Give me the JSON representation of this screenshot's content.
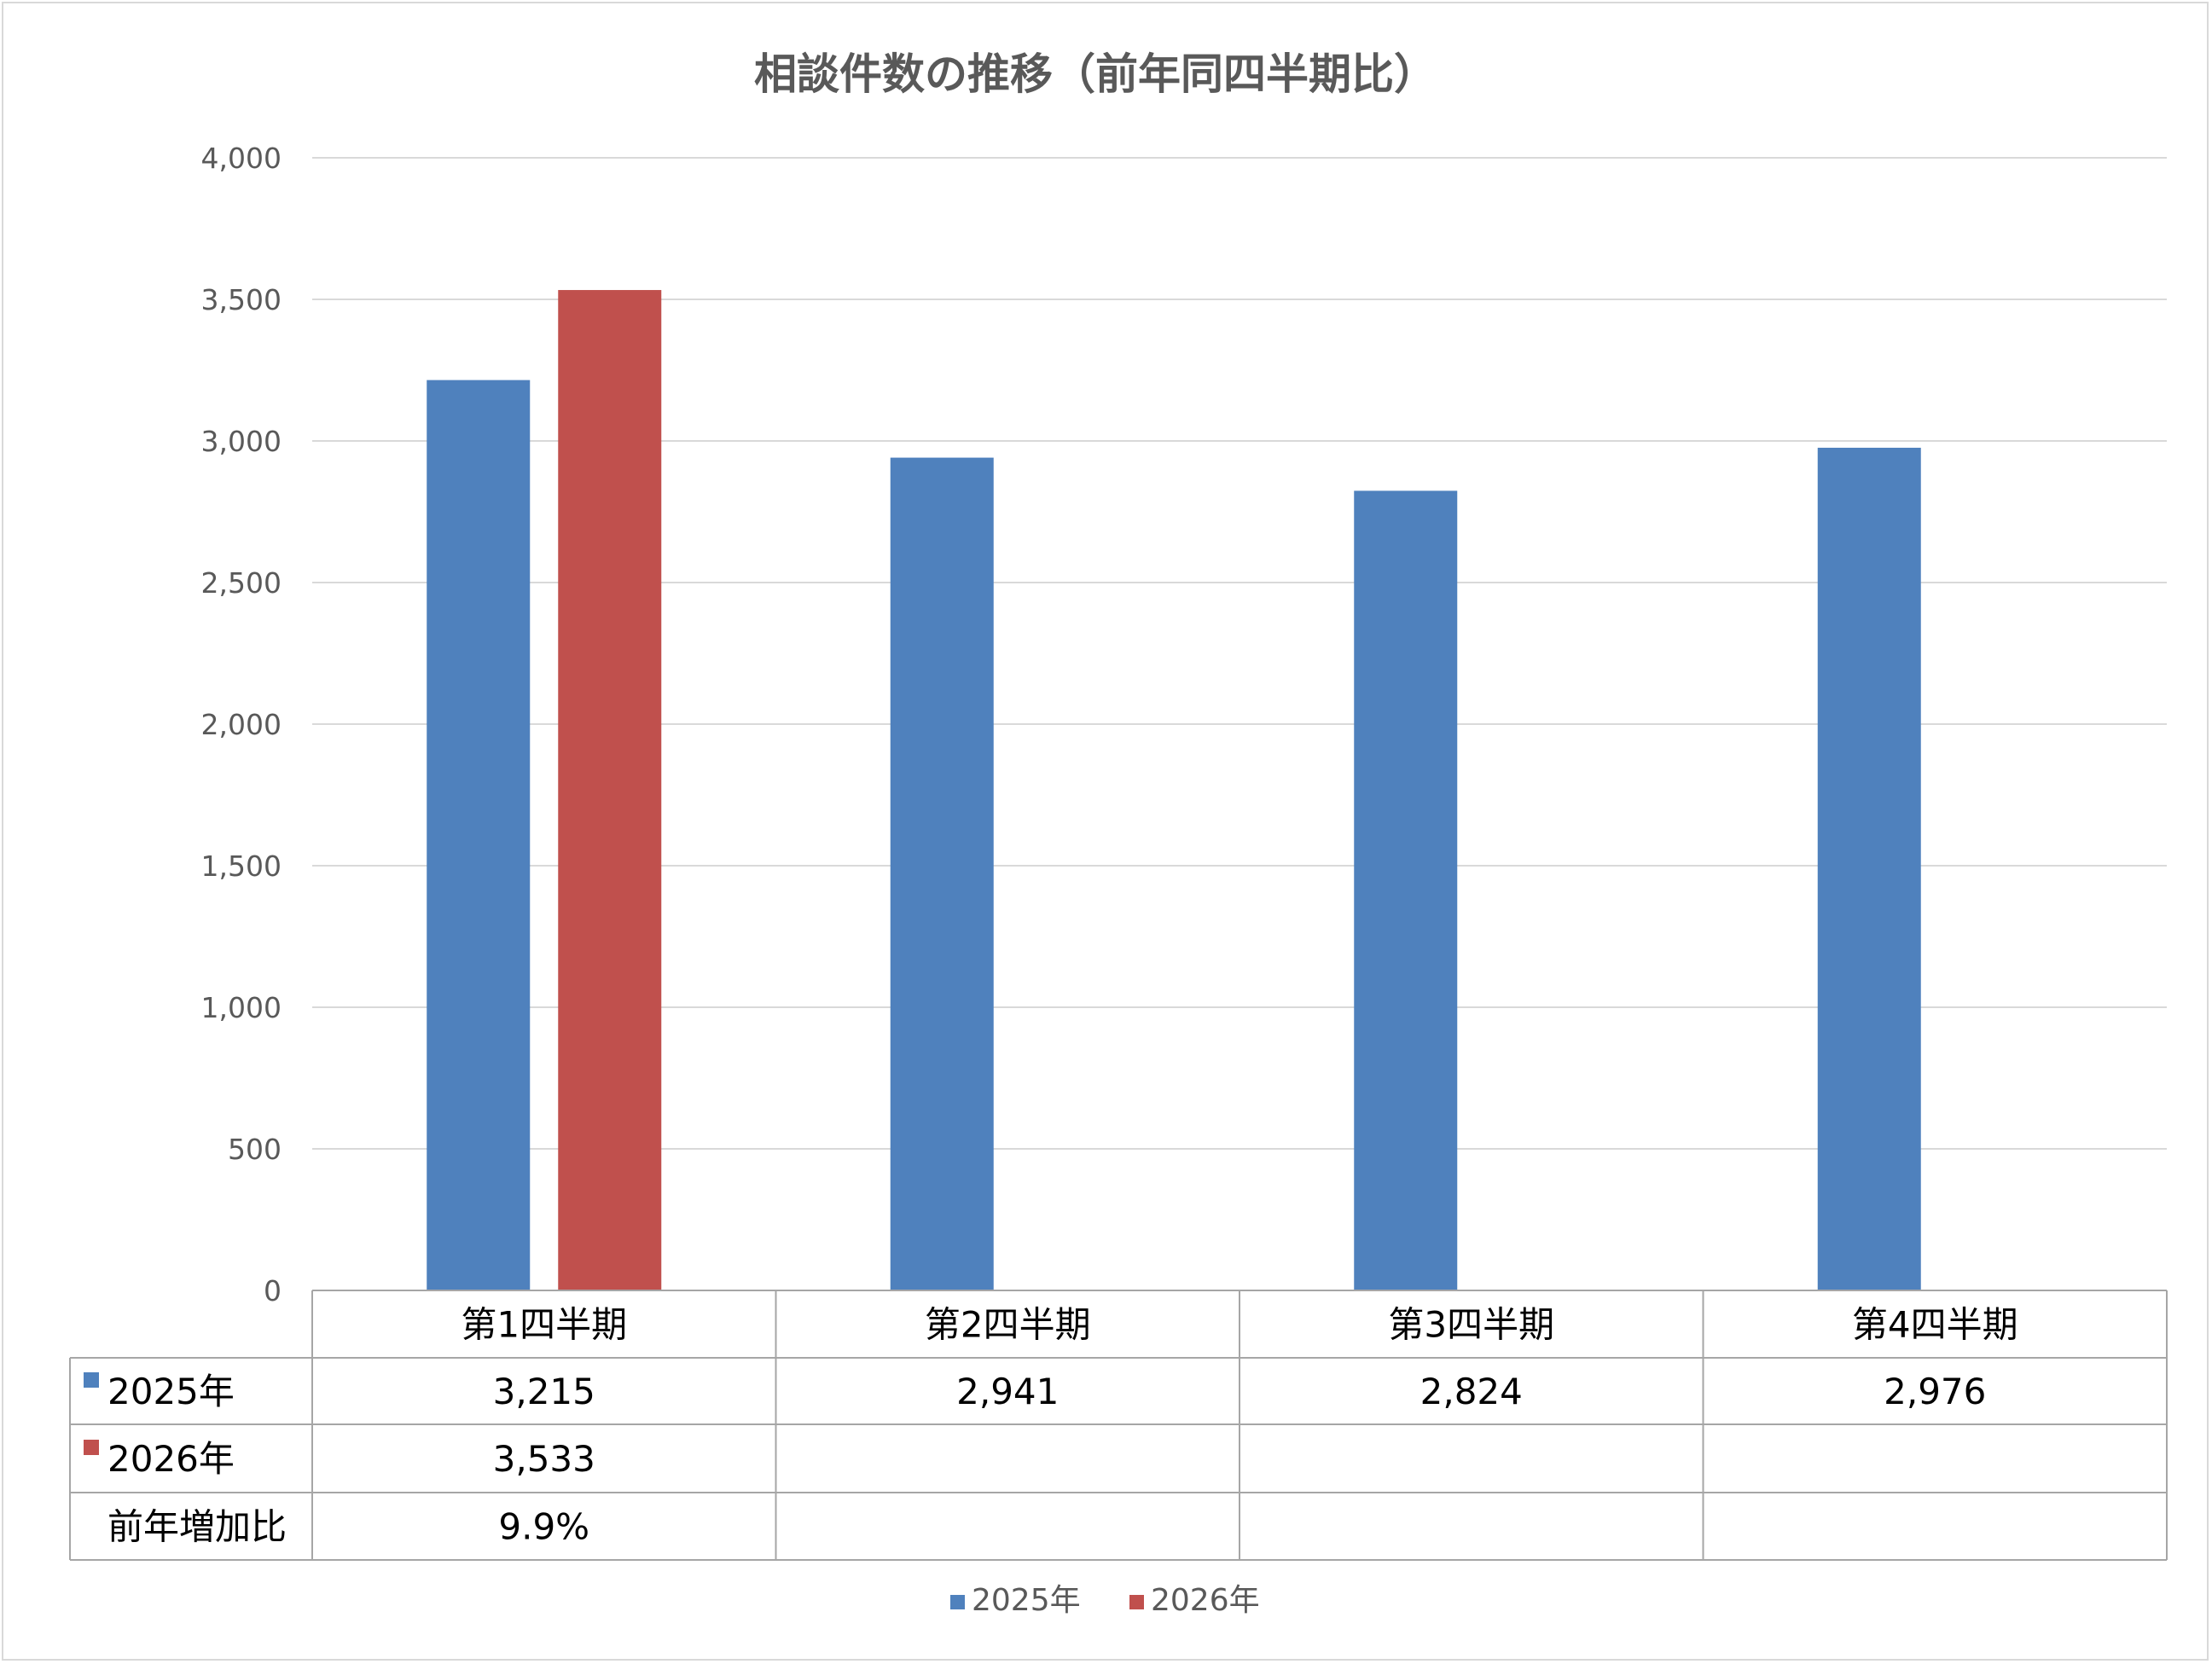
{
  "chart_data": {
    "type": "bar",
    "title": "相談件数の推移（前年同四半期比）",
    "categories": [
      "第1四半期",
      "第2四半期",
      "第3四半期",
      "第4四半期"
    ],
    "series": [
      {
        "name": "2025年",
        "color": "#4f81bd",
        "values": [
          3215,
          2941,
          2824,
          2976
        ],
        "labels": [
          "3,215",
          "2,941",
          "2,824",
          "2,976"
        ]
      },
      {
        "name": "2026年",
        "color": "#c0504d",
        "values": [
          3533,
          null,
          null,
          null
        ],
        "labels": [
          "3,533",
          "",
          "",
          ""
        ]
      }
    ],
    "ylim": [
      0,
      4000
    ],
    "yticks": [
      0,
      500,
      1000,
      1500,
      2000,
      2500,
      3000,
      3500,
      4000
    ],
    "ytick_labels": [
      "0",
      "500",
      "1,000",
      "1,500",
      "2,000",
      "2,500",
      "3,000",
      "3,500",
      "4,000"
    ],
    "grid": true,
    "data_table": {
      "extra_row": {
        "label": "前年増加比",
        "values": [
          "9.9%",
          "",
          "",
          ""
        ]
      }
    },
    "legend": {
      "position": "bottom",
      "entries": [
        "2025年",
        "2026年"
      ]
    }
  }
}
